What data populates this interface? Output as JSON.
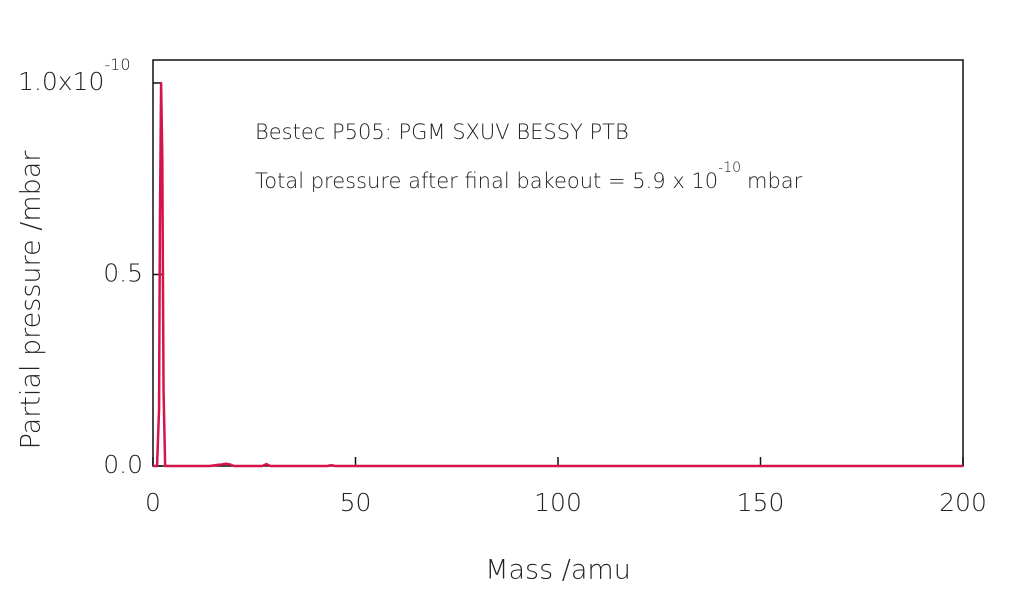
{
  "chart_data": {
    "type": "line",
    "x_label": "Mass /amu",
    "y_label": "Partial pressure /mbar",
    "annotations": [
      {
        "text": "Bestec P505: PGM SXUV BESSY PTB"
      },
      {
        "text": "Total pressure after final bakeout = 5.9 x 10",
        "superscript": "-10",
        "suffix": "mbar"
      }
    ],
    "xlim": [
      0,
      200
    ],
    "xticks": [
      0,
      50,
      100,
      150,
      200
    ],
    "ylim": [
      0,
      1.06
    ],
    "yticks": [
      {
        "value": 0,
        "label": "0.0"
      },
      0.5,
      {
        "value": 1,
        "label": "1.0x10",
        "superscript": "-10"
      }
    ],
    "series": [
      {
        "color": "#d4144a",
        "x": [
          0,
          1,
          1.5,
          1.7,
          2,
          2.3,
          2.6,
          3,
          14,
          16,
          17,
          18,
          19,
          20,
          27,
          28,
          29,
          43,
          44,
          45,
          200
        ],
        "values": [
          0,
          0,
          0.15,
          0.62,
          1.0,
          0.8,
          0.2,
          0,
          0,
          0.003,
          0.004,
          0.006,
          0.004,
          0,
          0,
          0.005,
          0,
          0,
          0.002,
          0,
          0
        ]
      }
    ]
  }
}
